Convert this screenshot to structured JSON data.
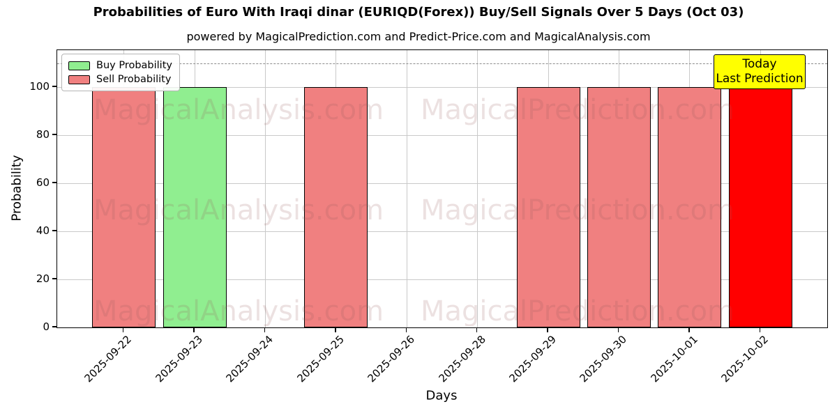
{
  "chart_data": {
    "type": "bar",
    "title": "Probabilities of Euro With Iraqi dinar (EURIQD(Forex)) Buy/Sell Signals Over 5 Days (Oct 03)",
    "subtitle": "powered by MagicalPrediction.com and Predict-Price.com and MagicalAnalysis.com",
    "xlabel": "Days",
    "ylabel": "Probability",
    "ylim": [
      0,
      115.4
    ],
    "yticks": [
      0,
      20,
      40,
      60,
      80,
      100
    ],
    "grid": true,
    "legend_position": "upper-left",
    "dashed_line_y": 110,
    "bar_edge_color": "#000000",
    "categories": [
      "2025-09-22",
      "2025-09-23",
      "2025-09-24",
      "2025-09-25",
      "2025-09-26",
      "2025-09-28",
      "2025-09-29",
      "2025-09-30",
      "2025-10-01",
      "2025-10-02"
    ],
    "series": [
      {
        "name": "Buy Probability",
        "color": "#90ee90",
        "values": [
          0,
          100,
          0,
          0,
          0,
          0,
          0,
          0,
          0,
          0
        ]
      },
      {
        "name": "Sell Probability",
        "color": "#f08080",
        "values": [
          100,
          0,
          0,
          100,
          0,
          0,
          100,
          100,
          100,
          0
        ]
      },
      {
        "name": "Today Last Prediction",
        "color": "#ff0000",
        "values": [
          0,
          0,
          0,
          0,
          0,
          0,
          0,
          0,
          0,
          100
        ]
      }
    ]
  },
  "legend": {
    "items": [
      {
        "label": "Buy Probability",
        "color": "#90ee90"
      },
      {
        "label": "Sell Probability",
        "color": "#f08080"
      }
    ]
  },
  "annotation": {
    "line1": "Today",
    "line2": "Last Prediction",
    "bg": "#ffff00"
  },
  "watermarks": {
    "left": "MagicalAnalysis.com",
    "right": "MagicalPrediction.com"
  }
}
